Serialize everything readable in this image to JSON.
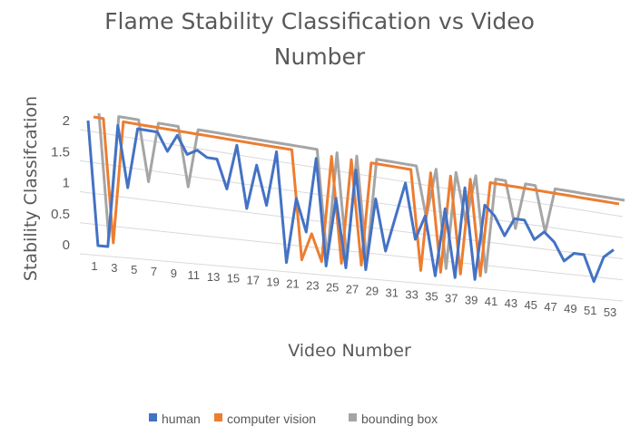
{
  "chart_data": {
    "type": "line",
    "subtype": "3d-line",
    "title": "Flame Stability Classification vs Video Number",
    "xlabel": "Video Number",
    "ylabel": "Stability Classifcation",
    "ylim": [
      0,
      2
    ],
    "yticks": [
      "0",
      "0.5",
      "1",
      "1.5",
      "2"
    ],
    "categories": [
      1,
      2,
      3,
      4,
      5,
      6,
      7,
      8,
      9,
      10,
      11,
      12,
      13,
      14,
      15,
      16,
      17,
      18,
      19,
      20,
      21,
      22,
      23,
      24,
      25,
      26,
      27,
      28,
      29,
      30,
      31,
      32,
      33,
      34,
      35,
      36,
      37,
      38,
      39,
      40,
      41,
      42,
      43,
      44,
      45,
      46,
      47,
      48,
      49,
      50,
      51,
      52,
      53,
      54
    ],
    "xtick_labels": [
      "1",
      "3",
      "5",
      "7",
      "9",
      "11",
      "13",
      "15",
      "17",
      "19",
      "21",
      "23",
      "25",
      "27",
      "29",
      "31",
      "33",
      "35",
      "37",
      "39",
      "41",
      "43",
      "45",
      "47",
      "49",
      "51",
      "53"
    ],
    "legend_position": "bottom",
    "grid": true,
    "series": [
      {
        "name": "human",
        "color": "#4472C4",
        "values": [
          2,
          0,
          0,
          2,
          1,
          2,
          2,
          2,
          1.7,
          2,
          1.7,
          1.8,
          1.7,
          1.7,
          1.2,
          2,
          0.9,
          1.7,
          1,
          2,
          0,
          1.2,
          0.6,
          2,
          0,
          1.3,
          0,
          1.9,
          0,
          1.4,
          0.4,
          1.1,
          1.8,
          0.7,
          1.2,
          0,
          1.4,
          0,
          1.9,
          0,
          1.6,
          1.4,
          1,
          1.4,
          1.4,
          1,
          1.2,
          1,
          0.6,
          0.8,
          0.8,
          0.2,
          0.8,
          1
        ]
      },
      {
        "name": "computer vision",
        "color": "#ED7D31",
        "values": [
          2,
          2,
          0,
          2,
          2,
          2,
          2,
          2,
          2,
          2,
          2,
          2,
          2,
          2,
          2,
          2,
          2,
          2,
          2,
          2,
          2,
          0,
          0.5,
          0,
          2,
          0,
          2,
          0,
          2,
          2,
          2,
          2,
          2,
          0,
          2,
          0,
          2,
          0,
          2,
          0,
          2,
          2,
          2,
          2,
          2,
          2,
          2,
          2,
          2,
          2,
          2,
          2,
          2,
          2
        ]
      },
      {
        "name": "bounding box",
        "color": "#A5A5A5",
        "values": [
          2,
          0,
          2,
          2,
          2,
          1,
          2,
          2,
          2,
          1,
          2,
          2,
          2,
          2,
          2,
          2,
          2,
          2,
          2,
          2,
          2,
          2,
          2,
          0,
          2,
          0,
          2,
          0,
          2,
          2,
          2,
          2,
          2,
          1,
          2,
          0,
          2,
          1,
          2,
          0,
          2,
          2,
          1,
          2,
          2,
          1,
          2,
          2,
          2,
          2,
          2,
          2,
          2,
          2
        ]
      }
    ]
  }
}
